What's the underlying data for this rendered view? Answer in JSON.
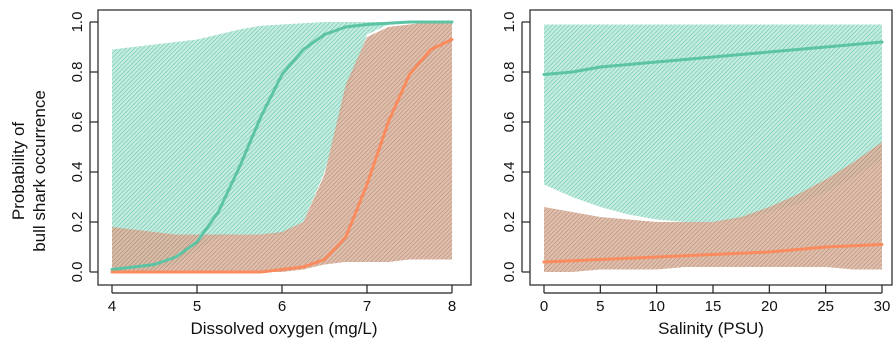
{
  "colors": {
    "teal": "#5cc4a4",
    "orange": "#f98b5e",
    "teal_band": "#9bdcc8",
    "orange_band": "#c9a08a",
    "axis": "#222222"
  },
  "shared_ylabel": [
    "Probability of",
    "bull shark occurrence"
  ],
  "chart_data": [
    {
      "type": "line",
      "xlabel": "Dissolved oxygen (mg/L)",
      "ylabel": "",
      "xlim": [
        4,
        8
      ],
      "ylim": [
        0,
        1
      ],
      "xticks": [
        4,
        5,
        6,
        7,
        8
      ],
      "yticks": [
        0.0,
        0.2,
        0.4,
        0.6,
        0.8,
        1.0
      ],
      "grid": false,
      "legend": "none",
      "series": [
        {
          "color": "teal",
          "x": [
            4.0,
            4.25,
            4.5,
            4.75,
            5.0,
            5.25,
            5.5,
            5.75,
            6.0,
            6.25,
            6.5,
            6.75,
            7.0,
            7.25,
            7.5,
            7.75,
            8.0
          ],
          "y": [
            0.01,
            0.02,
            0.03,
            0.06,
            0.12,
            0.24,
            0.42,
            0.62,
            0.79,
            0.89,
            0.95,
            0.98,
            0.99,
            0.995,
            1.0,
            1.0,
            1.0
          ],
          "lower": [
            0.0,
            0.0,
            0.01,
            0.03,
            0.09,
            0.14,
            0.15,
            0.15,
            0.15,
            0.2,
            0.4,
            0.7,
            0.95,
            0.99,
            1.0,
            1.0,
            1.0
          ],
          "upper": [
            0.89,
            0.9,
            0.91,
            0.92,
            0.93,
            0.95,
            0.97,
            0.985,
            0.99,
            0.995,
            1.0,
            1.0,
            1.0,
            1.0,
            1.0,
            1.0,
            1.0
          ]
        },
        {
          "color": "orange",
          "x": [
            4.0,
            4.25,
            4.5,
            4.75,
            5.0,
            5.25,
            5.5,
            5.75,
            6.0,
            6.25,
            6.5,
            6.75,
            7.0,
            7.25,
            7.5,
            7.75,
            8.0
          ],
          "y": [
            0.0,
            0.0,
            0.0,
            0.0,
            0.0,
            0.0,
            0.0,
            0.0,
            0.01,
            0.02,
            0.05,
            0.14,
            0.35,
            0.6,
            0.79,
            0.89,
            0.93
          ],
          "lower": [
            0.0,
            0.0,
            0.0,
            0.0,
            0.0,
            0.0,
            0.0,
            0.0,
            0.0,
            0.01,
            0.03,
            0.04,
            0.04,
            0.04,
            0.05,
            0.05,
            0.05
          ],
          "upper": [
            0.18,
            0.17,
            0.16,
            0.15,
            0.15,
            0.15,
            0.15,
            0.15,
            0.16,
            0.2,
            0.39,
            0.75,
            0.94,
            0.98,
            0.99,
            1.0,
            1.0
          ]
        }
      ]
    },
    {
      "type": "line",
      "xlabel": "Salinity (PSU)",
      "ylabel": "",
      "xlim": [
        0,
        30
      ],
      "ylim": [
        0,
        1
      ],
      "xticks": [
        0,
        5,
        10,
        15,
        20,
        25,
        30
      ],
      "yticks": [
        0.0,
        0.2,
        0.4,
        0.6,
        0.8,
        1.0
      ],
      "grid": false,
      "legend": "none",
      "series": [
        {
          "color": "teal",
          "x": [
            0,
            2.5,
            5,
            7.5,
            10,
            12.5,
            15,
            17.5,
            20,
            22.5,
            25,
            27.5,
            30
          ],
          "y": [
            0.79,
            0.8,
            0.82,
            0.83,
            0.84,
            0.85,
            0.86,
            0.87,
            0.88,
            0.89,
            0.9,
            0.91,
            0.92
          ],
          "lower": [
            0.35,
            0.3,
            0.26,
            0.23,
            0.21,
            0.2,
            0.2,
            0.21,
            0.24,
            0.27,
            0.32,
            0.38,
            0.45
          ],
          "upper": [
            0.99,
            0.99,
            0.99,
            0.99,
            0.99,
            0.99,
            0.99,
            0.99,
            0.99,
            0.99,
            0.99,
            0.99,
            0.99
          ]
        },
        {
          "color": "orange",
          "x": [
            0,
            2.5,
            5,
            7.5,
            10,
            12.5,
            15,
            17.5,
            20,
            22.5,
            25,
            27.5,
            30
          ],
          "y": [
            0.04,
            0.045,
            0.05,
            0.055,
            0.06,
            0.065,
            0.07,
            0.075,
            0.08,
            0.09,
            0.1,
            0.105,
            0.11
          ],
          "lower": [
            0.0,
            0.0,
            0.01,
            0.01,
            0.01,
            0.02,
            0.02,
            0.02,
            0.02,
            0.02,
            0.02,
            0.01,
            0.01
          ],
          "upper": [
            0.26,
            0.24,
            0.22,
            0.21,
            0.2,
            0.2,
            0.2,
            0.22,
            0.26,
            0.31,
            0.37,
            0.44,
            0.52
          ]
        }
      ]
    }
  ]
}
